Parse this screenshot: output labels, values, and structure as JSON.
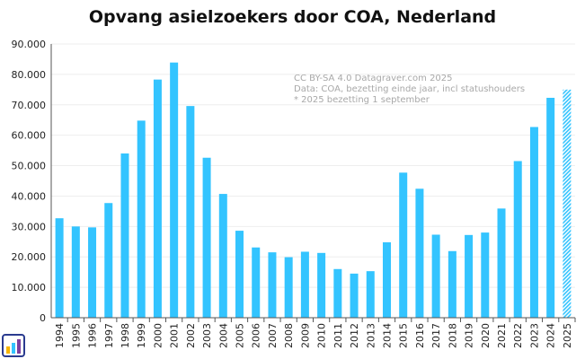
{
  "chart_data": {
    "type": "bar",
    "title": "Opvang asielzoekers door COA, Nederland",
    "xlabel": "",
    "ylabel": "",
    "ylim": [
      0,
      90000
    ],
    "yticks": [
      "0",
      "10.000",
      "20.000",
      "30.000",
      "40.000",
      "50.000",
      "60.000",
      "70.000",
      "80.000",
      "90.000"
    ],
    "grid": true,
    "categories": [
      "1994",
      "1995",
      "1996",
      "1997",
      "1998",
      "1999",
      "2000",
      "2001",
      "2002",
      "2003",
      "2004",
      "2005",
      "2006",
      "2007",
      "2008",
      "2009",
      "2010",
      "2011",
      "2012",
      "2013",
      "2014",
      "2015",
      "2016",
      "2017",
      "2018",
      "2019",
      "2020",
      "2021",
      "2022",
      "2023",
      "2024",
      "2025"
    ],
    "values": [
      32700,
      30000,
      29700,
      37700,
      54000,
      64800,
      78300,
      83900,
      69600,
      52600,
      40700,
      28600,
      23100,
      21500,
      19900,
      21700,
      21300,
      16000,
      14500,
      15300,
      24800,
      47700,
      42400,
      27300,
      21900,
      27200,
      28000,
      35900,
      51500,
      62700,
      72300,
      75000
    ],
    "hatched": [
      "2025"
    ],
    "colors": {
      "bar": "#33c4ff",
      "grid": "#eeeeee",
      "axis": "#555555"
    },
    "annotations": [
      "CC BY-SA 4.0 Datagraver.com  2025",
      "Data: COA, bezetting einde jaar, incl statushouders",
      "* 2025 bezetting 1 september"
    ]
  }
}
